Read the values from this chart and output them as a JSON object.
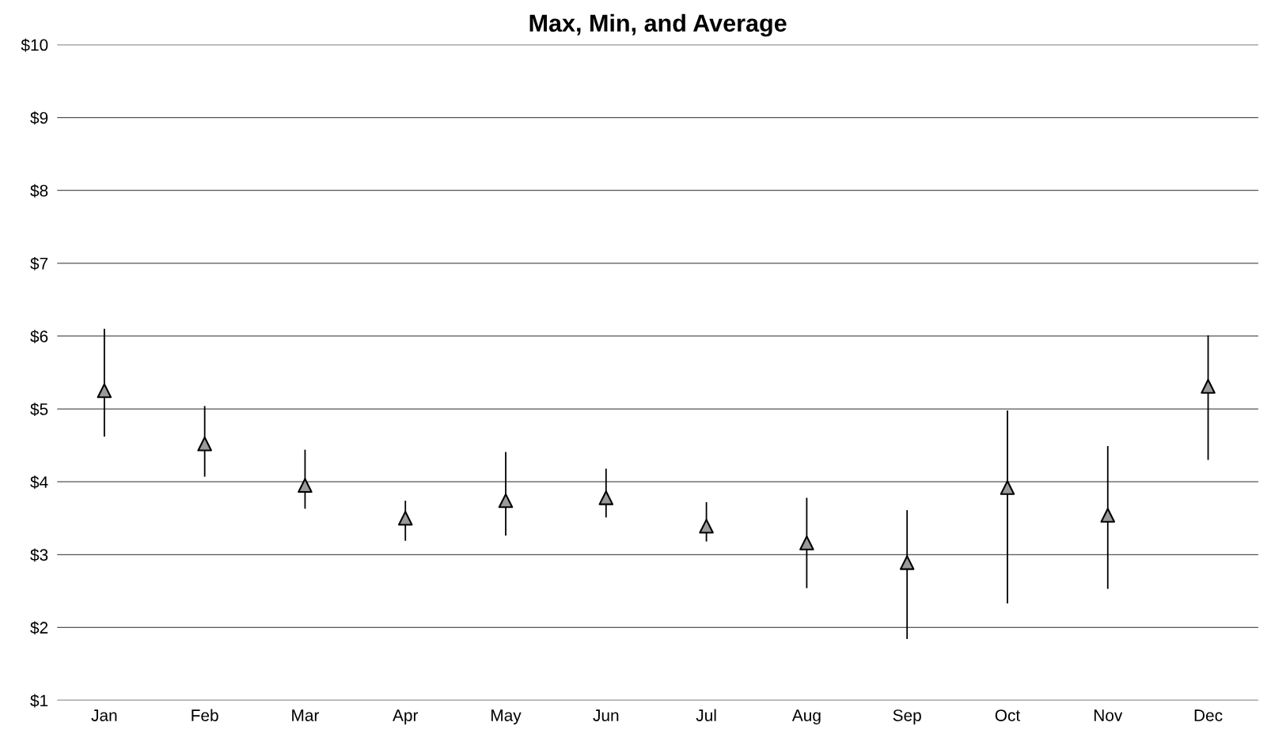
{
  "chart_data": {
    "type": "scatter",
    "title": "Max, Min, and Average",
    "categories": [
      "Jan",
      "Feb",
      "Mar",
      "Apr",
      "May",
      "Jun",
      "Jul",
      "Aug",
      "Sep",
      "Oct",
      "Nov",
      "Dec"
    ],
    "values": [
      5.25,
      4.52,
      3.95,
      3.5,
      3.74,
      3.78,
      3.39,
      3.16,
      2.89,
      3.92,
      3.54,
      5.31
    ],
    "errors": [
      [
        4.62,
        6.1
      ],
      [
        4.07,
        5.04
      ],
      [
        3.63,
        4.44
      ],
      [
        3.19,
        3.74
      ],
      [
        3.26,
        4.41
      ],
      [
        3.51,
        4.18
      ],
      [
        3.18,
        3.72
      ],
      [
        2.54,
        3.78
      ],
      [
        1.84,
        3.61
      ],
      [
        2.33,
        4.98
      ],
      [
        2.53,
        4.49
      ],
      [
        4.3,
        6.01
      ]
    ],
    "color": "#9a9a9a",
    "marker": "triangle",
    "grid": "y",
    "legend": false,
    "ylim": [
      1,
      10
    ],
    "yticks": [
      {
        "value": 1,
        "label": "$1"
      },
      {
        "value": 2,
        "label": "$2"
      },
      {
        "value": 3,
        "label": "$3"
      },
      {
        "value": 4,
        "label": "$4"
      },
      {
        "value": 5,
        "label": "$5"
      },
      {
        "value": 6,
        "label": "$6"
      },
      {
        "value": 7,
        "label": "$7"
      },
      {
        "value": 8,
        "label": "$8"
      },
      {
        "value": 9,
        "label": "$9"
      },
      {
        "value": 10,
        "label": "$10"
      }
    ]
  }
}
